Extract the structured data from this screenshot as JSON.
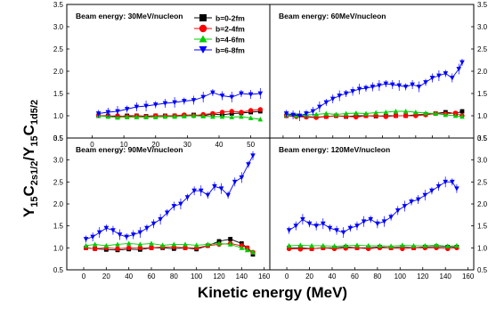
{
  "figure": {
    "xlabel": "Kinetic energy (MeV)",
    "ylabel": "Y15C2s1/2/Y15C1d5/2",
    "ylabel_parts": {
      "y1": "Y",
      "m1": "15",
      "c1": "C",
      "s1": "2s1/2",
      "slash": "/",
      "y2": "Y",
      "m2": "15",
      "c2": "C",
      "s2": "1d5/2"
    }
  },
  "legend": {
    "placement": "top-left-panel",
    "entries": [
      {
        "label": "b=0-2fm",
        "color": "#000000",
        "marker": "square"
      },
      {
        "label": "b=2-4fm",
        "color": "#ff0000",
        "marker": "circle"
      },
      {
        "label": "b=4-6fm",
        "color": "#00cc00",
        "marker": "triangle-up"
      },
      {
        "label": "b=6-8fm",
        "color": "#0000ff",
        "marker": "triangle-down"
      }
    ]
  },
  "chart_data": [
    {
      "type": "line",
      "title": "Beam energy: 30MeV/nucleon",
      "xlim": [
        -8,
        56
      ],
      "ylim": [
        0.5,
        3.5
      ],
      "xticks": [
        "0",
        "10",
        "20",
        "30",
        "40",
        "50"
      ],
      "yticks": [
        "0.5",
        "1.0",
        "1.5",
        "2.0",
        "2.5",
        "3.0",
        "3.5"
      ],
      "show_xticks": true,
      "show_yticks": true,
      "series": [
        {
          "name": "b=0-2fm",
          "x": [
            2,
            5,
            8,
            11,
            14,
            17,
            20,
            23,
            26,
            29,
            32,
            35,
            38,
            41,
            44,
            47,
            50,
            53
          ],
          "y": [
            1.0,
            1.0,
            0.98,
            1.0,
            1.0,
            0.99,
            1.0,
            1.0,
            1.0,
            1.01,
            1.02,
            1.0,
            1.04,
            1.02,
            1.05,
            1.06,
            1.08,
            1.1
          ]
        },
        {
          "name": "b=2-4fm",
          "x": [
            2,
            5,
            8,
            11,
            14,
            17,
            20,
            23,
            26,
            29,
            32,
            35,
            38,
            41,
            44,
            47,
            50,
            53
          ],
          "y": [
            1.0,
            0.99,
            1.0,
            0.98,
            1.0,
            0.98,
            1.0,
            0.99,
            1.0,
            1.02,
            1.0,
            1.03,
            1.05,
            1.08,
            1.1,
            1.08,
            1.12,
            1.14
          ]
        },
        {
          "name": "b=4-6fm",
          "x": [
            2,
            5,
            8,
            11,
            14,
            17,
            20,
            23,
            26,
            29,
            32,
            35,
            38,
            41,
            44,
            47,
            50,
            53
          ],
          "y": [
            1.0,
            0.98,
            0.96,
            0.97,
            0.97,
            0.97,
            0.97,
            0.98,
            0.98,
            0.99,
            1.0,
            0.99,
            0.98,
            0.98,
            0.97,
            0.98,
            0.95,
            0.92
          ]
        },
        {
          "name": "b=6-8fm",
          "x": [
            2,
            5,
            8,
            11,
            14,
            17,
            20,
            23,
            26,
            29,
            32,
            35,
            38,
            41,
            44,
            47,
            50,
            53
          ],
          "y": [
            1.05,
            1.08,
            1.1,
            1.15,
            1.2,
            1.22,
            1.25,
            1.28,
            1.3,
            1.33,
            1.35,
            1.42,
            1.52,
            1.45,
            1.42,
            1.5,
            1.48,
            1.5
          ]
        }
      ]
    },
    {
      "type": "line",
      "title": "Beam energy: 60MeV/nucleon",
      "xlim": [
        -8,
        115
      ],
      "ylim": [
        0.5,
        3.5
      ],
      "xticks": [
        "0",
        "10",
        "20",
        "30",
        "40",
        "50",
        "60",
        "70",
        "80",
        "90",
        "100"
      ],
      "yticks": [
        "0.5",
        "1.0",
        "1.5",
        "2.0",
        "2.5",
        "3.0",
        "3.5"
      ],
      "show_xticks": false,
      "show_yticks": true,
      "series": [
        {
          "name": "b=0-2fm",
          "x": [
            2,
            8,
            14,
            20,
            26,
            32,
            38,
            44,
            50,
            56,
            62,
            68,
            74,
            80,
            86,
            92,
            98,
            104,
            108
          ],
          "y": [
            1.0,
            1.0,
            0.98,
            0.97,
            0.98,
            1.0,
            0.98,
            1.0,
            1.0,
            0.99,
            1.0,
            1.0,
            1.0,
            1.02,
            1.03,
            1.05,
            1.08,
            1.05,
            1.1
          ]
        },
        {
          "name": "b=2-4fm",
          "x": [
            2,
            8,
            14,
            20,
            26,
            32,
            38,
            44,
            50,
            56,
            62,
            68,
            74,
            80,
            86,
            92,
            98,
            104,
            108
          ],
          "y": [
            1.0,
            0.98,
            0.97,
            0.96,
            0.98,
            1.0,
            0.99,
            0.97,
            1.0,
            1.0,
            0.98,
            1.0,
            1.0,
            1.0,
            1.02,
            1.05,
            1.04,
            1.06,
            1.0
          ]
        },
        {
          "name": "b=4-6fm",
          "x": [
            2,
            8,
            14,
            20,
            26,
            32,
            38,
            44,
            50,
            56,
            62,
            68,
            74,
            80,
            86,
            92,
            98,
            104,
            108
          ],
          "y": [
            1.02,
            1.0,
            1.02,
            1.03,
            1.05,
            1.03,
            1.05,
            1.06,
            1.05,
            1.07,
            1.08,
            1.1,
            1.1,
            1.08,
            1.06,
            1.05,
            1.02,
            1.0,
            0.98
          ]
        },
        {
          "name": "b=6-8fm",
          "x": [
            2,
            6,
            10,
            14,
            18,
            22,
            26,
            30,
            34,
            38,
            42,
            46,
            50,
            54,
            58,
            62,
            66,
            70,
            74,
            78,
            82,
            86,
            90,
            94,
            98,
            102,
            106,
            108
          ],
          "y": [
            1.05,
            1.02,
            1.0,
            1.05,
            1.1,
            1.2,
            1.3,
            1.38,
            1.45,
            1.5,
            1.55,
            1.6,
            1.62,
            1.65,
            1.68,
            1.72,
            1.7,
            1.68,
            1.65,
            1.7,
            1.65,
            1.75,
            1.85,
            1.9,
            1.95,
            1.85,
            2.05,
            2.2
          ]
        }
      ]
    },
    {
      "type": "line",
      "title": "Beam energy: 90MeV/nucleon",
      "xlim": [
        -15,
        165
      ],
      "ylim": [
        0.5,
        3.5
      ],
      "xticks": [
        "0",
        "20",
        "40",
        "60",
        "80",
        "100",
        "120",
        "140",
        "160"
      ],
      "yticks": [
        "0.5",
        "1.0",
        "1.5",
        "2.0",
        "2.5",
        "3.0",
        "3.5"
      ],
      "show_xticks": true,
      "show_yticks": true,
      "series": [
        {
          "name": "b=0-2fm",
          "x": [
            2,
            10,
            20,
            30,
            40,
            50,
            60,
            70,
            80,
            90,
            100,
            110,
            120,
            130,
            140,
            145,
            150
          ],
          "y": [
            1.0,
            0.98,
            0.96,
            0.95,
            0.97,
            0.96,
            1.0,
            1.0,
            0.98,
            1.0,
            0.97,
            1.05,
            1.15,
            1.2,
            1.1,
            1.0,
            0.85
          ]
        },
        {
          "name": "b=2-4fm",
          "x": [
            2,
            10,
            20,
            30,
            40,
            50,
            60,
            70,
            80,
            90,
            100,
            110,
            120,
            130,
            140,
            145,
            150
          ],
          "y": [
            1.0,
            0.98,
            1.0,
            0.98,
            1.0,
            1.0,
            1.0,
            1.02,
            1.02,
            1.0,
            1.0,
            1.05,
            1.08,
            1.1,
            1.05,
            1.0,
            0.9
          ]
        },
        {
          "name": "b=4-6fm",
          "x": [
            2,
            10,
            20,
            30,
            40,
            50,
            60,
            70,
            80,
            90,
            100,
            110,
            120,
            130,
            140,
            145,
            150
          ],
          "y": [
            1.05,
            1.08,
            1.05,
            1.08,
            1.1,
            1.08,
            1.1,
            1.06,
            1.08,
            1.08,
            1.06,
            1.08,
            1.1,
            1.08,
            1.0,
            0.95,
            0.9
          ]
        },
        {
          "name": "b=6-8fm",
          "x": [
            2,
            8,
            14,
            20,
            26,
            32,
            38,
            44,
            50,
            56,
            62,
            68,
            74,
            80,
            86,
            92,
            98,
            104,
            110,
            116,
            122,
            128,
            134,
            140,
            146,
            150
          ],
          "y": [
            1.2,
            1.25,
            1.35,
            1.45,
            1.4,
            1.3,
            1.25,
            1.3,
            1.35,
            1.45,
            1.55,
            1.65,
            1.8,
            1.95,
            2.0,
            2.15,
            2.3,
            2.3,
            2.2,
            2.4,
            2.35,
            2.2,
            2.5,
            2.6,
            2.9,
            3.1
          ]
        }
      ]
    },
    {
      "type": "line",
      "title": "Beam energy: 120MeV/nucleon",
      "xlim": [
        -15,
        165
      ],
      "ylim": [
        0.5,
        3.5
      ],
      "xticks": [
        "0",
        "20",
        "40",
        "60",
        "80",
        "100",
        "120",
        "140",
        "160"
      ],
      "yticks": [
        "0.5",
        "1.0",
        "1.5",
        "2.0",
        "2.5",
        "3.0",
        "3.5"
      ],
      "show_xticks": true,
      "show_yticks": true,
      "series": [
        {
          "name": "b=0-2fm",
          "x": [
            2,
            12,
            22,
            32,
            42,
            52,
            62,
            72,
            82,
            92,
            102,
            112,
            122,
            132,
            142,
            150
          ],
          "y": [
            1.0,
            1.0,
            0.98,
            1.0,
            1.0,
            1.02,
            1.0,
            1.0,
            1.02,
            1.0,
            1.02,
            1.0,
            1.02,
            1.03,
            1.02,
            1.02
          ]
        },
        {
          "name": "b=2-4fm",
          "x": [
            2,
            12,
            22,
            32,
            42,
            52,
            62,
            72,
            82,
            92,
            102,
            112,
            122,
            132,
            142,
            150
          ],
          "y": [
            0.98,
            0.97,
            0.98,
            1.0,
            0.98,
            0.99,
            1.0,
            0.98,
            1.0,
            1.0,
            0.98,
            1.0,
            1.0,
            1.0,
            0.98,
            1.0
          ]
        },
        {
          "name": "b=4-6fm",
          "x": [
            2,
            12,
            22,
            32,
            42,
            52,
            62,
            72,
            82,
            92,
            102,
            112,
            122,
            132,
            142,
            150
          ],
          "y": [
            1.05,
            1.06,
            1.05,
            1.05,
            1.04,
            1.05,
            1.06,
            1.05,
            1.05,
            1.04,
            1.06,
            1.05,
            1.05,
            1.06,
            1.04,
            1.05
          ]
        },
        {
          "name": "b=6-8fm",
          "x": [
            2,
            8,
            14,
            20,
            26,
            32,
            38,
            44,
            50,
            56,
            62,
            68,
            74,
            80,
            86,
            92,
            98,
            104,
            110,
            116,
            122,
            128,
            134,
            140,
            146,
            150
          ],
          "y": [
            1.4,
            1.5,
            1.65,
            1.55,
            1.5,
            1.55,
            1.45,
            1.4,
            1.35,
            1.45,
            1.5,
            1.6,
            1.65,
            1.55,
            1.6,
            1.7,
            1.85,
            1.95,
            2.05,
            2.1,
            2.2,
            2.3,
            2.4,
            2.5,
            2.5,
            2.35
          ]
        }
      ]
    }
  ]
}
